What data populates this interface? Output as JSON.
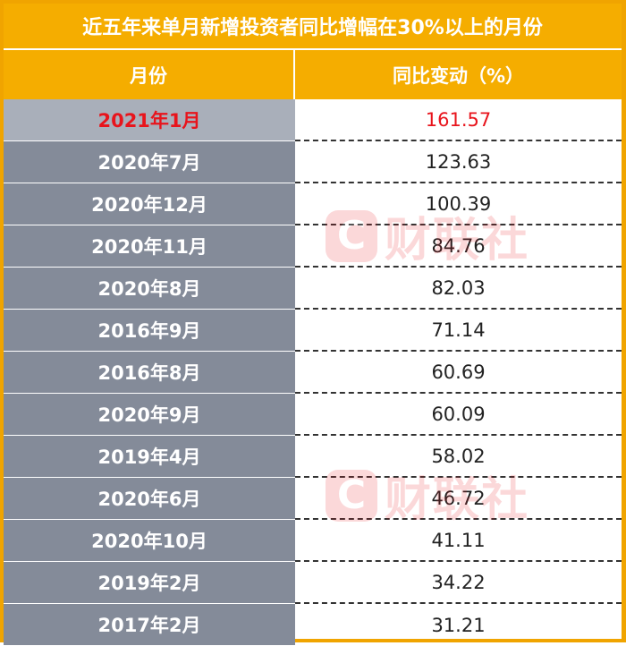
{
  "title": "近五年来单月新增投资者同比增幅在30%以上的月份",
  "headers": {
    "month": "月份",
    "change": "同比变动（%）"
  },
  "chart_data": {
    "type": "table",
    "title": "近五年来单月新增投资者同比增幅在30%以上的月份",
    "columns": [
      "月份",
      "同比变动（%）"
    ],
    "rows": [
      {
        "month": "2021年1月",
        "value": "161.57",
        "highlight": true
      },
      {
        "month": "2020年7月",
        "value": "123.63"
      },
      {
        "month": "2020年12月",
        "value": "100.39"
      },
      {
        "month": "2020年11月",
        "value": "84.76"
      },
      {
        "month": "2020年8月",
        "value": "82.03"
      },
      {
        "month": "2016年9月",
        "value": "71.14"
      },
      {
        "month": "2016年8月",
        "value": "60.69"
      },
      {
        "month": "2020年9月",
        "value": "60.09"
      },
      {
        "month": "2019年4月",
        "value": "58.02"
      },
      {
        "month": "2020年6月",
        "value": "46.72"
      },
      {
        "month": "2020年10月",
        "value": "41.11"
      },
      {
        "month": "2019年2月",
        "value": "34.22"
      },
      {
        "month": "2017年2月",
        "value": "31.21"
      }
    ]
  },
  "watermark": {
    "badge": "C",
    "text": "财联社"
  },
  "colors": {
    "header": "#f5ad00",
    "left_cell": "#848b99",
    "highlight_text": "#e8141c"
  }
}
